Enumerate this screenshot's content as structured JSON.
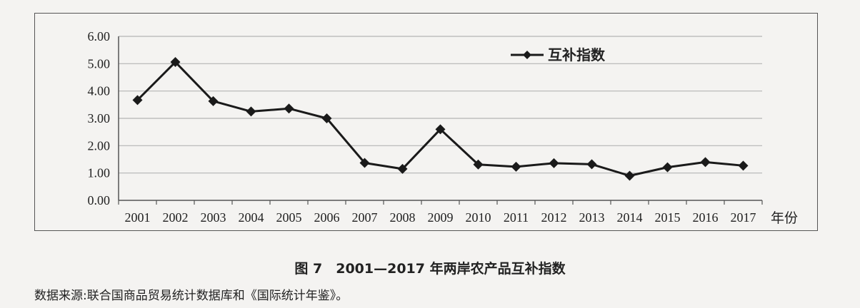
{
  "chart_data": {
    "type": "line",
    "categories": [
      "2001",
      "2002",
      "2003",
      "2004",
      "2005",
      "2006",
      "2007",
      "2008",
      "2009",
      "2010",
      "2011",
      "2012",
      "2013",
      "2014",
      "2015",
      "2016",
      "2017"
    ],
    "series": [
      {
        "name": "互补指数",
        "values": [
          3.67,
          5.06,
          3.63,
          3.25,
          3.36,
          3.0,
          1.37,
          1.15,
          2.6,
          1.31,
          1.23,
          1.36,
          1.32,
          0.9,
          1.21,
          1.4,
          1.27
        ]
      }
    ],
    "yticks": [
      "0.00",
      "1.00",
      "2.00",
      "3.00",
      "4.00",
      "5.00",
      "6.00"
    ],
    "ylim": [
      0,
      6
    ],
    "xlabel": "年份",
    "ylabel": "",
    "grid": true,
    "legend": "top-center",
    "title": "图 7　2001—2017 年两岸农产品互补指数",
    "colors": {
      "line": "#1a1a1a",
      "grid": "#b5b5b5",
      "axis": "#555555"
    }
  },
  "caption": "图 7　2001—2017 年两岸农产品互补指数",
  "source": "数据来源:联合国商品贸易统计数据库和《国际统计年鉴》。"
}
